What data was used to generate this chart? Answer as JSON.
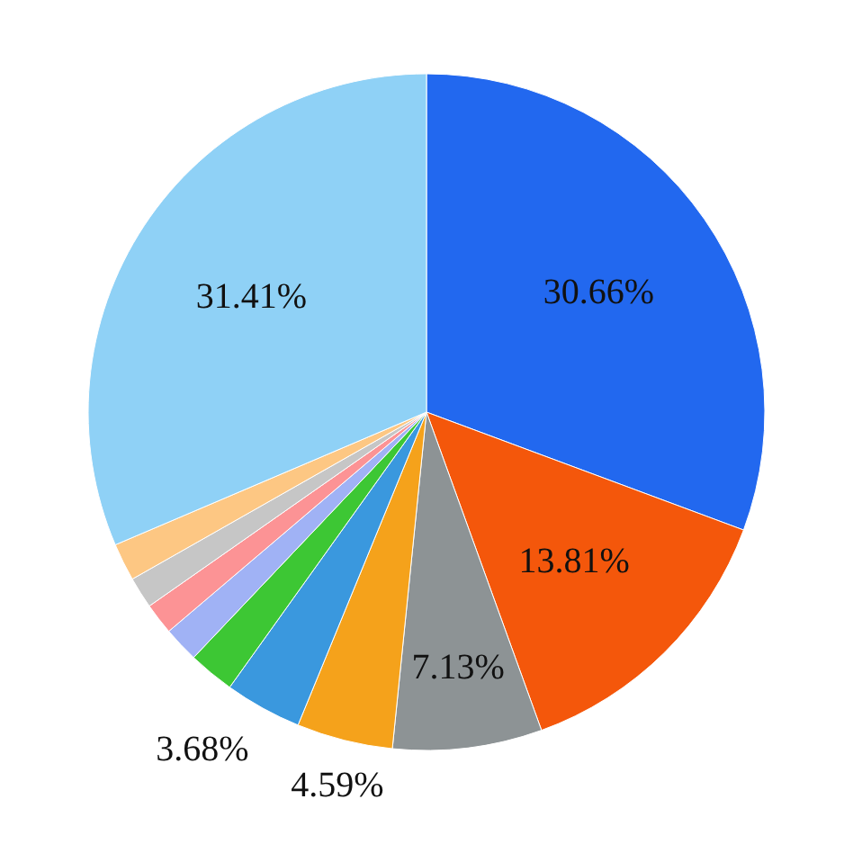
{
  "chart_data": {
    "type": "pie",
    "categories": [
      null,
      null,
      null,
      null,
      null,
      null,
      null,
      null,
      null,
      null,
      null
    ],
    "values": [
      30.66,
      13.81,
      7.13,
      4.59,
      3.68,
      2.2,
      1.7,
      1.5,
      1.5,
      1.8,
      31.41
    ],
    "colors": [
      "#2268ef",
      "#f4570b",
      "#8d9395",
      "#f5a21b",
      "#3a98de",
      "#3dc734",
      "#a0b2f5",
      "#fc9395",
      "#c6c6c6",
      "#fdc783",
      "#8fd1f6"
    ],
    "value_labels": [
      "30.66%",
      "13.81%",
      "7.13%",
      "4.59%",
      "3.68%",
      null,
      null,
      null,
      null,
      null,
      "31.41%"
    ]
  }
}
